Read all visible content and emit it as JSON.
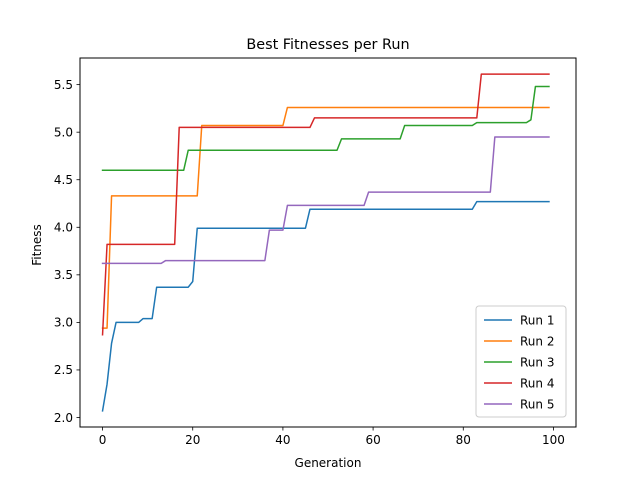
{
  "chart_data": {
    "type": "line",
    "title": "Best Fitnesses per Run",
    "xlabel": "Generation",
    "ylabel": "Fitness",
    "xlim": [
      -5,
      105
    ],
    "ylim": [
      1.9,
      5.78
    ],
    "xticks": [
      0,
      20,
      40,
      60,
      80,
      100
    ],
    "xtick_labels": [
      "0",
      "20",
      "40",
      "60",
      "80",
      "100"
    ],
    "yticks": [
      2.0,
      2.5,
      3.0,
      3.5,
      4.0,
      4.5,
      5.0,
      5.5
    ],
    "ytick_labels": [
      "2.0",
      "2.5",
      "3.0",
      "3.5",
      "4.0",
      "4.5",
      "5.0",
      "5.5"
    ],
    "grid": false,
    "legend_position": "bottom-right",
    "series": [
      {
        "name": "Run 1",
        "color": "#1f77b4",
        "x": [
          0,
          1,
          2,
          3,
          8,
          9,
          11,
          12,
          19,
          20,
          21,
          45,
          46,
          82,
          83,
          99
        ],
        "y": [
          2.07,
          2.35,
          2.78,
          3.0,
          3.0,
          3.04,
          3.04,
          3.37,
          3.37,
          3.43,
          3.99,
          3.99,
          4.19,
          4.19,
          4.27,
          4.27
        ]
      },
      {
        "name": "Run 2",
        "color": "#ff7f0e",
        "x": [
          0,
          1,
          2,
          21,
          22,
          40,
          41,
          99
        ],
        "y": [
          2.94,
          2.94,
          4.33,
          4.33,
          5.07,
          5.07,
          5.26,
          5.26
        ]
      },
      {
        "name": "Run 3",
        "color": "#2ca02c",
        "x": [
          0,
          18,
          19,
          52,
          53,
          66,
          67,
          82,
          83,
          94,
          95,
          96,
          99
        ],
        "y": [
          4.6,
          4.6,
          4.81,
          4.81,
          4.93,
          4.93,
          5.07,
          5.07,
          5.1,
          5.1,
          5.13,
          5.48,
          5.48
        ]
      },
      {
        "name": "Run 4",
        "color": "#d62728",
        "x": [
          0,
          1,
          16,
          17,
          46,
          47,
          83,
          84,
          99
        ],
        "y": [
          2.87,
          3.82,
          3.82,
          5.05,
          5.05,
          5.15,
          5.15,
          5.61,
          5.61
        ]
      },
      {
        "name": "Run 5",
        "color": "#9467bd",
        "x": [
          0,
          13,
          14,
          36,
          37,
          40,
          41,
          58,
          59,
          86,
          87,
          99
        ],
        "y": [
          3.62,
          3.62,
          3.65,
          3.65,
          3.97,
          3.97,
          4.23,
          4.23,
          4.37,
          4.37,
          4.95,
          4.95
        ]
      }
    ]
  }
}
